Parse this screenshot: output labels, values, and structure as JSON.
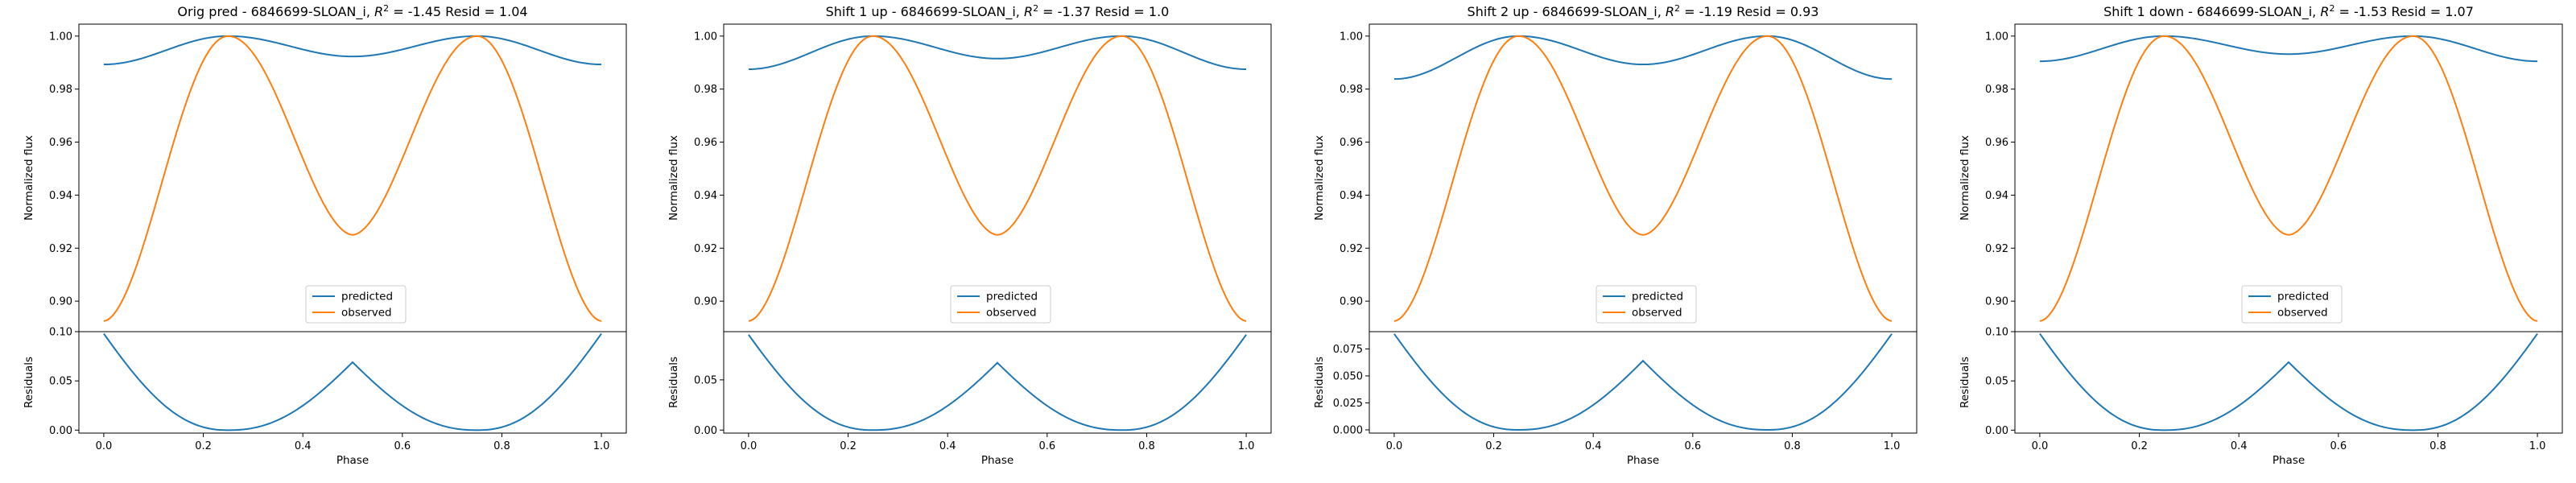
{
  "figure": {
    "background": "#ffffff"
  },
  "colors": {
    "predicted": "#1f77b4",
    "observed": "#ff7f0e",
    "residual": "#1f77b4"
  },
  "chart_data": [
    {
      "type": "line",
      "title_prefix": "Orig pred - 6846699-SLOAN_i, ",
      "r2_label": "R",
      "r2_sup": "2",
      "title_suffix": " = -1.45 Resid = 1.04",
      "predicted": {
        "name": "predicted",
        "min": 0.9893,
        "max": 1.0,
        "mid": 0.9923
      },
      "observed": {
        "name": "observed",
        "edge": 0.8925,
        "trough": 0.925,
        "peak": 1.0
      },
      "residual": {
        "amp": 0.098,
        "mid": 0.069
      },
      "top_ylim": [
        0.8885,
        1.0045
      ],
      "top_yticks": [
        "0.90",
        "0.92",
        "0.94",
        "0.96",
        "0.98",
        "1.00"
      ],
      "top_ytick_values": [
        0.9,
        0.92,
        0.94,
        0.96,
        0.98,
        1.0
      ],
      "ylabel_top": "Normalized flux",
      "bottom_ylim": [
        -0.003,
        0.1
      ],
      "bottom_yticks": [
        "0.00",
        "0.05",
        "0.10"
      ],
      "bottom_ytick_values": [
        0.0,
        0.05,
        0.1
      ],
      "ylabel_bottom": "Residuals",
      "xlabel": "Phase",
      "xticks": [
        "0.0",
        "0.2",
        "0.4",
        "0.6",
        "0.8",
        "1.0"
      ],
      "xtick_values": [
        0.0,
        0.2,
        0.4,
        0.6,
        0.8,
        1.0
      ],
      "xlim": [
        -0.05,
        1.05
      ]
    },
    {
      "type": "line",
      "title_prefix": "Shift 1 up - 6846699-SLOAN_i, ",
      "r2_label": "R",
      "r2_sup": "2",
      "title_suffix": " = -1.37 Resid = 1.0",
      "predicted": {
        "name": "predicted",
        "min": 0.9875,
        "max": 1.0,
        "mid": 0.9915
      },
      "observed": {
        "name": "observed",
        "edge": 0.8925,
        "trough": 0.925,
        "peak": 1.0
      },
      "residual": {
        "amp": 0.095,
        "mid": 0.067
      },
      "top_ylim": [
        0.8885,
        1.0045
      ],
      "top_yticks": [
        "0.90",
        "0.92",
        "0.94",
        "0.96",
        "0.98",
        "1.00"
      ],
      "top_ytick_values": [
        0.9,
        0.92,
        0.94,
        0.96,
        0.98,
        1.0
      ],
      "ylabel_top": "Normalized flux",
      "bottom_ylim": [
        -0.003,
        0.098
      ],
      "bottom_yticks": [
        "0.00",
        "0.05"
      ],
      "bottom_ytick_values": [
        0.0,
        0.05
      ],
      "ylabel_bottom": "Residuals",
      "xlabel": "Phase",
      "xticks": [
        "0.0",
        "0.2",
        "0.4",
        "0.6",
        "0.8",
        "1.0"
      ],
      "xtick_values": [
        0.0,
        0.2,
        0.4,
        0.6,
        0.8,
        1.0
      ],
      "xlim": [
        -0.05,
        1.05
      ]
    },
    {
      "type": "line",
      "title_prefix": "Shift 2 up - 6846699-SLOAN_i, ",
      "r2_label": "R",
      "r2_sup": "2",
      "title_suffix": " = -1.19 Resid = 0.93",
      "predicted": {
        "name": "predicted",
        "min": 0.9838,
        "max": 1.0,
        "mid": 0.9893
      },
      "observed": {
        "name": "observed",
        "edge": 0.8925,
        "trough": 0.925,
        "peak": 1.0
      },
      "residual": {
        "amp": 0.089,
        "mid": 0.064
      },
      "top_ylim": [
        0.8885,
        1.0045
      ],
      "top_yticks": [
        "0.90",
        "0.92",
        "0.94",
        "0.96",
        "0.98",
        "1.00"
      ],
      "top_ytick_values": [
        0.9,
        0.92,
        0.94,
        0.96,
        0.98,
        1.0
      ],
      "ylabel_top": "Normalized flux",
      "bottom_ylim": [
        -0.003,
        0.091
      ],
      "bottom_yticks": [
        "0.000",
        "0.025",
        "0.050",
        "0.075"
      ],
      "bottom_ytick_values": [
        0.0,
        0.025,
        0.05,
        0.075
      ],
      "ylabel_bottom": "Residuals",
      "xlabel": "Phase",
      "xticks": [
        "0.0",
        "0.2",
        "0.4",
        "0.6",
        "0.8",
        "1.0"
      ],
      "xtick_values": [
        0.0,
        0.2,
        0.4,
        0.6,
        0.8,
        1.0
      ],
      "xlim": [
        -0.05,
        1.05
      ]
    },
    {
      "type": "line",
      "title_prefix": "Shift 1 down - 6846699-SLOAN_i, ",
      "r2_label": "R",
      "r2_sup": "2",
      "title_suffix": " = -1.53 Resid = 1.07",
      "predicted": {
        "name": "predicted",
        "min": 0.9905,
        "max": 1.0,
        "mid": 0.9932
      },
      "observed": {
        "name": "observed",
        "edge": 0.8925,
        "trough": 0.925,
        "peak": 1.0
      },
      "residual": {
        "amp": 0.098,
        "mid": 0.069
      },
      "top_ylim": [
        0.8885,
        1.0045
      ],
      "top_yticks": [
        "0.90",
        "0.92",
        "0.94",
        "0.96",
        "0.98",
        "1.00"
      ],
      "top_ytick_values": [
        0.9,
        0.92,
        0.94,
        0.96,
        0.98,
        1.0
      ],
      "ylabel_top": "Normalized flux",
      "bottom_ylim": [
        -0.003,
        0.1
      ],
      "bottom_yticks": [
        "0.00",
        "0.05",
        "0.10"
      ],
      "bottom_ytick_values": [
        0.0,
        0.05,
        0.1
      ],
      "ylabel_bottom": "Residuals",
      "xlabel": "Phase",
      "xticks": [
        "0.0",
        "0.2",
        "0.4",
        "0.6",
        "0.8",
        "1.0"
      ],
      "xtick_values": [
        0.0,
        0.2,
        0.4,
        0.6,
        0.8,
        1.0
      ],
      "xlim": [
        -0.05,
        1.05
      ]
    }
  ]
}
